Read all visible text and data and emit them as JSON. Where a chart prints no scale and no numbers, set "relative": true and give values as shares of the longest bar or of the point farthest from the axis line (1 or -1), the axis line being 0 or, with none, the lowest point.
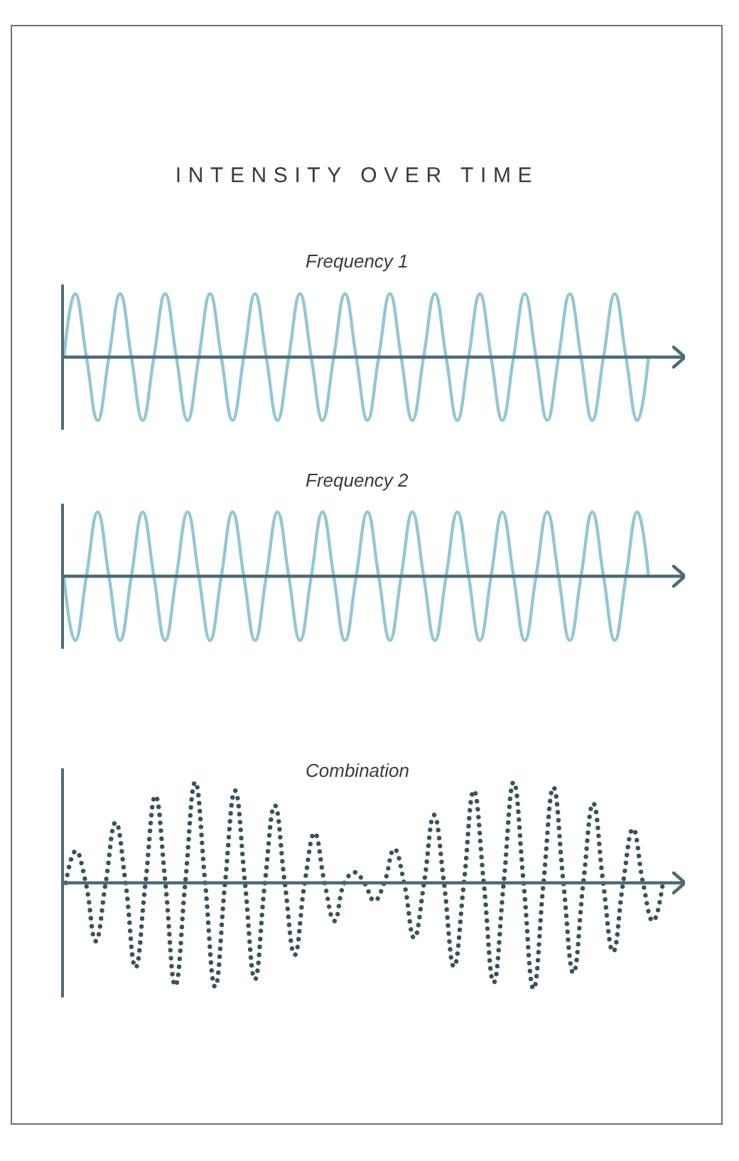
{
  "chart_data": [
    {
      "type": "line",
      "title": "INTENSITY OVER TIME",
      "subtitle": "Frequency 1",
      "relative": true,
      "categories": [
        null,
        null,
        null,
        null,
        null,
        null,
        null,
        null,
        null,
        null,
        null,
        null,
        null,
        null,
        null,
        null,
        null,
        null,
        null,
        null,
        null,
        null,
        null,
        null,
        null,
        null,
        null,
        null,
        null,
        null,
        null,
        null,
        null,
        null,
        null,
        null,
        null,
        null,
        null,
        null,
        null,
        null,
        null,
        null,
        null,
        null,
        null,
        null,
        null,
        null,
        null,
        null,
        null
      ],
      "series": [
        {
          "color": "#92c7d4",
          "values": [
            0,
            1,
            0,
            -1,
            0,
            1,
            0,
            -1,
            0,
            1,
            0,
            -1,
            0,
            1,
            0,
            -1,
            0,
            1,
            0,
            -1,
            0,
            1,
            0,
            -1,
            0,
            1,
            0,
            -1,
            0,
            1,
            0,
            -1,
            0,
            1,
            0,
            -1,
            0,
            1,
            0,
            -1,
            0,
            1,
            0,
            -1,
            0,
            1,
            0,
            -1,
            0,
            1,
            0,
            -1,
            0
          ]
        }
      ],
      "ref_lines": [
        {
          "axis": "y",
          "value": 0,
          "color": "#4b6b78"
        }
      ]
    },
    {
      "type": "line",
      "subtitle": "Frequency 2",
      "relative": true,
      "categories": [
        null,
        null,
        null,
        null,
        null,
        null,
        null,
        null,
        null,
        null,
        null,
        null,
        null,
        null,
        null,
        null,
        null,
        null,
        null,
        null,
        null,
        null,
        null,
        null,
        null,
        null,
        null,
        null,
        null,
        null,
        null,
        null,
        null,
        null,
        null,
        null,
        null,
        null,
        null,
        null,
        null,
        null,
        null,
        null,
        null,
        null,
        null,
        null,
        null,
        null,
        null,
        null,
        null
      ],
      "series": [
        {
          "color": "#92c7d4",
          "values": [
            0,
            -1,
            0,
            1,
            0,
            -1,
            0,
            1,
            0,
            -1,
            0,
            1,
            0,
            -1,
            0,
            1,
            0,
            -1,
            0,
            1,
            0,
            -1,
            0,
            1,
            0,
            -1,
            0,
            1,
            0,
            -1,
            0,
            1,
            0,
            -1,
            0,
            1,
            0,
            -1,
            0,
            1,
            0,
            -1,
            0,
            1,
            0,
            -1,
            0,
            1,
            0,
            -1,
            0,
            1,
            0
          ]
        }
      ],
      "ref_lines": [
        {
          "axis": "y",
          "value": 0,
          "color": "#4b6b78"
        }
      ]
    },
    {
      "type": "line",
      "subtitle": "Combination",
      "relative": true,
      "line_style": "dotted",
      "categories": [
        null,
        null,
        null,
        null,
        null,
        null,
        null,
        null,
        null,
        null,
        null,
        null,
        null,
        null,
        null,
        null,
        null,
        null,
        null,
        null,
        null,
        null,
        null,
        null,
        null,
        null,
        null,
        null,
        null,
        null,
        null,
        null,
        null,
        null,
        null,
        null,
        null,
        null,
        null,
        null,
        null,
        null,
        null,
        null,
        null,
        null,
        null,
        null,
        null,
        null,
        null,
        null,
        null,
        null,
        null,
        null,
        null,
        null,
        null,
        null,
        null
      ],
      "series": [
        {
          "color": "#38525e",
          "values": [
            0,
            0.3,
            0,
            -0.55,
            0,
            0.57,
            0,
            -0.8,
            0,
            0.82,
            0,
            -0.97,
            0,
            0.95,
            0,
            -0.98,
            0,
            0.87,
            0,
            -0.91,
            0,
            0.73,
            0,
            -0.68,
            0,
            0.47,
            0,
            -0.36,
            0,
            0.1,
            0,
            -0.17,
            0,
            0.32,
            0,
            -0.52,
            0,
            0.64,
            0,
            -0.79,
            0,
            0.87,
            0,
            -0.94,
            0,
            0.95,
            0,
            -1.0,
            0,
            0.9,
            0,
            -0.85,
            0,
            0.75,
            0,
            -0.65,
            0,
            0.51,
            0,
            -0.36,
            0
          ]
        }
      ],
      "ref_lines": [
        {
          "axis": "y",
          "value": 0,
          "color": "#4b6b78"
        }
      ]
    }
  ]
}
